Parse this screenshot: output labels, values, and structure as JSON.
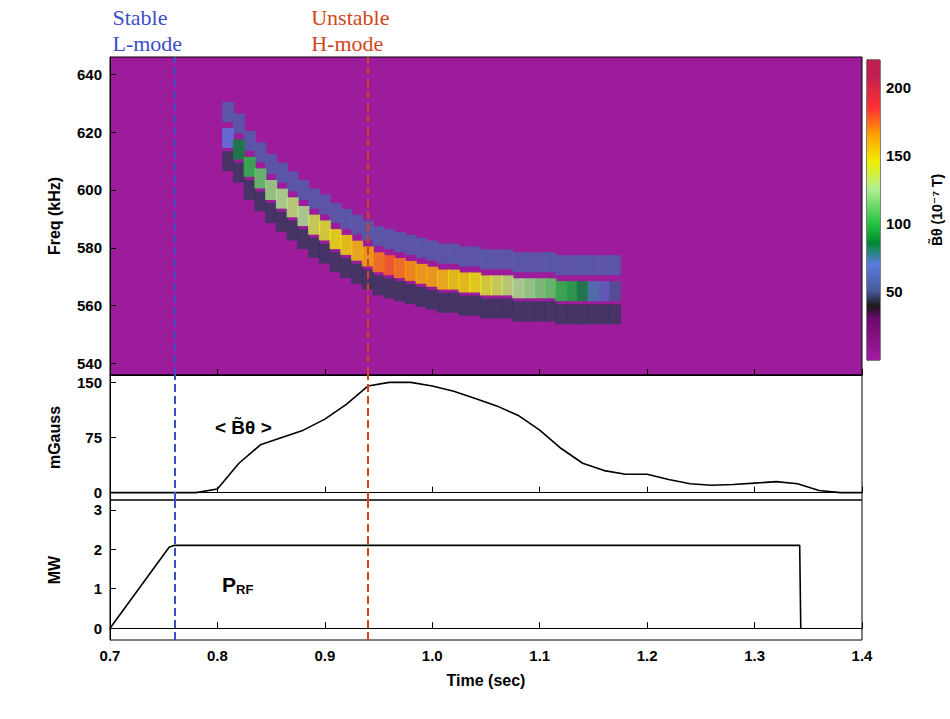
{
  "chart_data": [
    {
      "type": "heatmap",
      "y_label": "Freq (kHz)",
      "xlim": [
        0.7,
        1.4
      ],
      "xticks": [
        0.7,
        0.8,
        0.9,
        {
          "value": 1,
          "label": "1.0"
        },
        1.1,
        1.2,
        1.3,
        1.4
      ],
      "ylim": [
        536,
        646
      ],
      "yticks": [
        540,
        560,
        580,
        600,
        620,
        640
      ],
      "tick_labels": "y",
      "grid": false,
      "vlines": [
        {
          "x": 0.76,
          "label": [
            "Stable",
            "L-mode"
          ],
          "color": "#3b4fc9"
        },
        {
          "x": 0.945,
          "label": [
            "Unstable",
            "H-mode"
          ],
          "color": "#d2451c"
        }
      ],
      "colorbar": {
        "label": "B̃θ (10⁻⁷ T)",
        "range": [
          0,
          220
        ],
        "ticks": [
          50,
          100,
          150,
          200
        ]
      },
      "cells": [
        [
          0.81,
          627,
          55
        ],
        [
          0.82,
          623,
          55
        ],
        [
          0.83,
          617,
          55
        ],
        [
          0.84,
          613,
          55
        ],
        [
          0.85,
          609,
          55
        ],
        [
          0.86,
          606,
          55
        ],
        [
          0.87,
          603,
          55
        ],
        [
          0.88,
          600,
          55
        ],
        [
          0.89,
          597,
          55
        ],
        [
          0.9,
          595,
          55
        ],
        [
          0.91,
          592,
          55
        ],
        [
          0.92,
          590,
          55
        ],
        [
          0.93,
          588,
          55
        ],
        [
          0.94,
          586,
          55
        ],
        [
          0.95,
          584,
          55
        ],
        [
          0.96,
          583,
          55
        ],
        [
          0.97,
          582,
          55
        ],
        [
          0.98,
          581,
          55
        ],
        [
          0.99,
          580,
          55
        ],
        [
          1.0,
          579,
          55
        ],
        [
          1.01,
          578,
          55
        ],
        [
          1.02,
          578,
          55
        ],
        [
          1.03,
          577,
          55
        ],
        [
          1.04,
          577,
          55
        ],
        [
          1.05,
          576,
          55
        ],
        [
          1.06,
          576,
          55
        ],
        [
          1.07,
          576,
          55
        ],
        [
          1.08,
          575,
          55
        ],
        [
          1.09,
          575,
          55
        ],
        [
          1.1,
          575,
          55
        ],
        [
          1.11,
          575,
          55
        ],
        [
          1.12,
          574,
          55
        ],
        [
          1.13,
          574,
          55
        ],
        [
          1.14,
          574,
          55
        ],
        [
          1.15,
          574,
          55
        ],
        [
          1.16,
          574,
          55
        ],
        [
          1.17,
          574,
          55
        ],
        [
          0.81,
          610,
          45
        ],
        [
          0.82,
          606,
          45
        ],
        [
          0.83,
          600,
          45
        ],
        [
          0.84,
          596,
          45
        ],
        [
          0.85,
          592,
          45
        ],
        [
          0.86,
          589,
          45
        ],
        [
          0.87,
          586,
          45
        ],
        [
          0.88,
          583,
          45
        ],
        [
          0.89,
          580,
          45
        ],
        [
          0.9,
          578,
          45
        ],
        [
          0.91,
          575,
          45
        ],
        [
          0.92,
          573,
          45
        ],
        [
          0.93,
          571,
          45
        ],
        [
          0.94,
          569,
          45
        ],
        [
          0.95,
          567,
          45
        ],
        [
          0.96,
          566,
          45
        ],
        [
          0.97,
          565,
          45
        ],
        [
          0.98,
          564,
          45
        ],
        [
          0.99,
          563,
          45
        ],
        [
          1.0,
          562,
          45
        ],
        [
          1.01,
          561,
          45
        ],
        [
          1.02,
          561,
          45
        ],
        [
          1.03,
          560,
          45
        ],
        [
          1.04,
          560,
          45
        ],
        [
          1.05,
          559,
          45
        ],
        [
          1.06,
          559,
          45
        ],
        [
          1.07,
          559,
          45
        ],
        [
          1.08,
          558,
          45
        ],
        [
          1.09,
          558,
          45
        ],
        [
          1.1,
          558,
          45
        ],
        [
          1.11,
          558,
          45
        ],
        [
          1.12,
          557,
          45
        ],
        [
          1.13,
          557,
          45
        ],
        [
          1.14,
          557,
          45
        ],
        [
          1.15,
          557,
          45
        ],
        [
          1.16,
          557,
          45
        ],
        [
          1.17,
          557,
          45
        ],
        [
          0.81,
          618,
          70
        ],
        [
          0.82,
          614,
          85
        ],
        [
          0.83,
          608,
          100
        ],
        [
          0.84,
          604,
          110
        ],
        [
          0.85,
          600,
          120
        ],
        [
          0.86,
          597,
          125
        ],
        [
          0.87,
          594,
          130
        ],
        [
          0.88,
          591,
          125
        ],
        [
          0.89,
          588,
          135
        ],
        [
          0.9,
          586,
          140
        ],
        [
          0.91,
          583,
          145
        ],
        [
          0.92,
          581,
          150
        ],
        [
          0.93,
          579,
          155
        ],
        [
          0.94,
          577,
          160
        ],
        [
          0.95,
          575,
          170
        ],
        [
          0.96,
          574,
          175
        ],
        [
          0.97,
          573,
          170
        ],
        [
          0.98,
          572,
          165
        ],
        [
          0.99,
          571,
          160
        ],
        [
          1.0,
          570,
          160
        ],
        [
          1.01,
          569,
          155
        ],
        [
          1.02,
          569,
          150
        ],
        [
          1.03,
          568,
          150
        ],
        [
          1.04,
          568,
          145
        ],
        [
          1.05,
          567,
          140
        ],
        [
          1.06,
          567,
          135
        ],
        [
          1.07,
          567,
          130
        ],
        [
          1.08,
          566,
          125
        ],
        [
          1.09,
          566,
          120
        ],
        [
          1.1,
          566,
          115
        ],
        [
          1.11,
          566,
          110
        ],
        [
          1.12,
          565,
          100
        ],
        [
          1.13,
          565,
          95
        ],
        [
          1.14,
          565,
          85
        ],
        [
          1.15,
          565,
          75
        ],
        [
          1.16,
          565,
          60
        ],
        [
          1.17,
          565,
          50
        ]
      ]
    },
    {
      "type": "line",
      "y_label": "mGauss",
      "annotation": "< B̃θ >",
      "xlim": [
        0.7,
        1.4
      ],
      "xticks": [
        0.7,
        0.8,
        0.9,
        {
          "value": 1,
          "label": "1.0"
        },
        1.1,
        1.2,
        1.3,
        1.4
      ],
      "ylim": [
        -10,
        160
      ],
      "yticks": [
        0,
        75,
        150
      ],
      "tick_labels": "y",
      "grid": false,
      "color": "#000000",
      "x": [
        0.7,
        0.78,
        0.8,
        0.82,
        0.84,
        0.86,
        0.88,
        0.9,
        0.92,
        0.94,
        0.96,
        0.98,
        1.0,
        1.02,
        1.04,
        1.06,
        1.08,
        1.1,
        1.12,
        1.14,
        1.16,
        1.18,
        1.2,
        1.22,
        1.24,
        1.26,
        1.28,
        1.3,
        1.32,
        1.34,
        1.36,
        1.38,
        1.4
      ],
      "values": [
        0,
        0,
        5,
        40,
        65,
        75,
        85,
        100,
        120,
        145,
        150,
        150,
        145,
        138,
        128,
        118,
        105,
        85,
        60,
        40,
        30,
        25,
        25,
        18,
        12,
        10,
        11,
        13,
        15,
        12,
        3,
        0,
        0
      ]
    },
    {
      "type": "line",
      "x_label": "Time (sec)",
      "y_label": "MW",
      "annotation": {
        "text": "P",
        "subscript": "RF"
      },
      "xlim": [
        0.7,
        1.4
      ],
      "xticks": [
        0.7,
        0.8,
        0.9,
        {
          "value": 1,
          "label": "1.0"
        },
        1.1,
        1.2,
        1.3,
        1.4
      ],
      "ylim": [
        -0.3,
        3.25
      ],
      "yticks": [
        0,
        1,
        2,
        3
      ],
      "grid": false,
      "color": "#000000",
      "x": [
        0.7,
        0.755,
        0.76,
        1.0,
        1.342,
        1.343
      ],
      "values": [
        0,
        2.05,
        2.1,
        2.1,
        2.1,
        0
      ]
    }
  ]
}
